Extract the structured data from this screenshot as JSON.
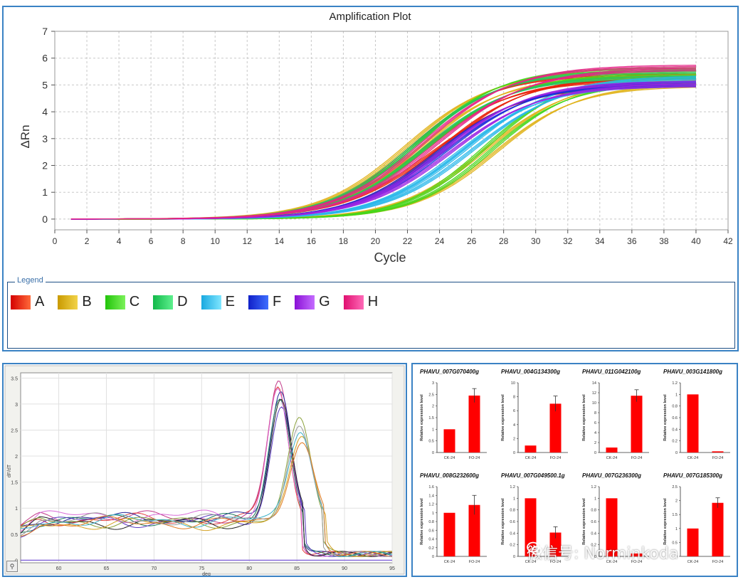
{
  "amplification": {
    "title": "Amplification Plot",
    "xlabel": "Cycle",
    "ylabel": "ΔRn",
    "legend_title": "Legend",
    "legend": [
      {
        "label": "A",
        "color_from": "#d40000",
        "color_to": "#ff6a3a"
      },
      {
        "label": "B",
        "color_from": "#c99a00",
        "color_to": "#f2d34a"
      },
      {
        "label": "C",
        "color_from": "#22c40a",
        "color_to": "#7cf25a"
      },
      {
        "label": "D",
        "color_from": "#12b84a",
        "color_to": "#5ef08e"
      },
      {
        "label": "E",
        "color_from": "#18a8e0",
        "color_to": "#7fe6ff"
      },
      {
        "label": "F",
        "color_from": "#1020c8",
        "color_to": "#3e6eff"
      },
      {
        "label": "G",
        "color_from": "#8a10d6",
        "color_to": "#c46cff"
      },
      {
        "label": "H",
        "color_from": "#e01070",
        "color_to": "#ff6ab8"
      }
    ]
  },
  "melt": {
    "xlabel": "deg",
    "ylabel": "dF/dT",
    "corner_icon": "zoom-icon"
  },
  "watermark": {
    "text": "微信号: Norminkoda",
    "icon": "wechat-icon"
  },
  "chart_data": [
    {
      "type": "line",
      "title": "Amplification Plot",
      "xlabel": "Cycle",
      "ylabel": "ΔRn",
      "xlim": [
        0,
        42
      ],
      "ylim": [
        -0.4,
        7
      ],
      "xticks": [
        0,
        2,
        4,
        6,
        8,
        10,
        12,
        14,
        16,
        18,
        20,
        22,
        24,
        26,
        28,
        30,
        32,
        34,
        36,
        38,
        40,
        42
      ],
      "yticks": [
        0,
        1,
        2,
        3,
        4,
        5,
        6,
        7
      ],
      "grid": true,
      "legend": "bottom",
      "x_range": [
        1,
        40
      ],
      "curve_model": "sigmoid: y = plateau / (1 + exp(-(x - midpoint) / slope))",
      "series": [
        {
          "name": "A",
          "color": "#e8230a",
          "curves": [
            {
              "midpoint": 22.3,
              "slope": 2.6,
              "plateau": 5.4
            },
            {
              "midpoint": 23.0,
              "slope": 2.8,
              "plateau": 5.2
            },
            {
              "midpoint": 23.6,
              "slope": 2.9,
              "plateau": 5.0
            },
            {
              "midpoint": 24.1,
              "slope": 2.7,
              "plateau": 5.3
            }
          ]
        },
        {
          "name": "B",
          "color": "#e0b21a",
          "curves": [
            {
              "midpoint": 22.0,
              "slope": 2.7,
              "plateau": 5.5
            },
            {
              "midpoint": 22.8,
              "slope": 2.6,
              "plateau": 5.3
            },
            {
              "midpoint": 26.9,
              "slope": 2.7,
              "plateau": 5.2
            },
            {
              "midpoint": 27.5,
              "slope": 2.6,
              "plateau": 5.0
            }
          ]
        },
        {
          "name": "C",
          "color": "#46d61a",
          "curves": [
            {
              "midpoint": 22.6,
              "slope": 2.6,
              "plateau": 5.6
            },
            {
              "midpoint": 23.3,
              "slope": 2.8,
              "plateau": 5.4
            },
            {
              "midpoint": 26.8,
              "slope": 2.5,
              "plateau": 5.3
            },
            {
              "midpoint": 27.2,
              "slope": 2.5,
              "plateau": 5.1
            }
          ]
        },
        {
          "name": "D",
          "color": "#22c75c",
          "curves": [
            {
              "midpoint": 22.4,
              "slope": 2.7,
              "plateau": 5.5
            },
            {
              "midpoint": 23.1,
              "slope": 2.7,
              "plateau": 5.3
            }
          ]
        },
        {
          "name": "E",
          "color": "#2ab8ea",
          "curves": [
            {
              "midpoint": 25.2,
              "slope": 2.7,
              "plateau": 5.0
            },
            {
              "midpoint": 25.7,
              "slope": 2.8,
              "plateau": 5.3
            },
            {
              "midpoint": 26.1,
              "slope": 2.8,
              "plateau": 5.2
            }
          ]
        },
        {
          "name": "F",
          "color": "#1a2ed8",
          "curves": [
            {
              "midpoint": 23.9,
              "slope": 2.7,
              "plateau": 5.0
            },
            {
              "midpoint": 24.4,
              "slope": 2.8,
              "plateau": 5.1
            }
          ]
        },
        {
          "name": "G",
          "color": "#9a22e2",
          "curves": [
            {
              "midpoint": 24.2,
              "slope": 2.7,
              "plateau": 5.1
            },
            {
              "midpoint": 24.7,
              "slope": 2.8,
              "plateau": 5.0
            }
          ]
        },
        {
          "name": "H",
          "color": "#e62486",
          "curves": [
            {
              "midpoint": 23.0,
              "slope": 2.8,
              "plateau": 5.7
            },
            {
              "midpoint": 23.8,
              "slope": 2.9,
              "plateau": 5.6
            }
          ]
        }
      ]
    },
    {
      "type": "line",
      "xlabel": "deg",
      "ylabel": "dF/dT",
      "xlim": [
        56,
        95
      ],
      "ylim": [
        -0.05,
        3.6
      ],
      "xticks": [
        60,
        65,
        70,
        75,
        80,
        85,
        90,
        95
      ],
      "yticks": [
        0,
        0.5,
        1,
        1.5,
        2,
        2.5,
        3,
        3.5
      ],
      "grid": true,
      "curve_model": "baseline 0.7-0.9 plus gaussian peak: height * exp(-((x - peak_x) / width)^2)",
      "series": [
        {
          "name": "",
          "color": "#c23a8a",
          "peak_x": 83.1,
          "height": 2.6,
          "width": 1.55,
          "base": 0.82
        },
        {
          "name": "",
          "color": "#e23b3b",
          "peak_x": 83.0,
          "height": 2.55,
          "width": 1.5,
          "base": 0.78
        },
        {
          "name": "",
          "color": "#2a2a9a",
          "peak_x": 83.3,
          "height": 2.45,
          "width": 1.55,
          "base": 0.8
        },
        {
          "name": "",
          "color": "#1a7a5a",
          "peak_x": 83.2,
          "height": 2.35,
          "width": 1.6,
          "base": 0.77
        },
        {
          "name": "",
          "color": "#5a3ac2",
          "peak_x": 83.4,
          "height": 2.25,
          "width": 1.6,
          "base": 0.75
        },
        {
          "name": "",
          "color": "#d86ad8",
          "peak_x": 83.0,
          "height": 2.5,
          "width": 1.5,
          "base": 0.85
        },
        {
          "name": "",
          "color": "#222222",
          "peak_x": 83.3,
          "height": 2.38,
          "width": 1.55,
          "base": 0.72
        },
        {
          "name": "",
          "color": "#8aa03a",
          "peak_x": 85.3,
          "height": 1.9,
          "width": 1.7,
          "base": 0.74
        },
        {
          "name": "",
          "color": "#d4a020",
          "peak_x": 85.6,
          "height": 1.7,
          "width": 1.75,
          "base": 0.7
        },
        {
          "name": "",
          "color": "#3ab0c8",
          "peak_x": 85.4,
          "height": 1.8,
          "width": 1.7,
          "base": 0.76
        },
        {
          "name": "",
          "color": "#e07a20",
          "peak_x": 85.5,
          "height": 1.65,
          "width": 1.8,
          "base": 0.72
        },
        {
          "name": "",
          "color": "#9a9a9a",
          "peak_x": 85.2,
          "height": 1.85,
          "width": 1.7,
          "base": 0.78
        }
      ]
    },
    {
      "type": "bar",
      "title": "PHAVU_007G070400g",
      "ylabel": "Relative expression level",
      "categories": [
        "CK-24",
        "FO-24"
      ],
      "values": [
        1.0,
        2.45
      ],
      "errors": [
        0,
        0.3
      ],
      "ylim": [
        0,
        3
      ],
      "yticks": [
        0,
        0.5,
        1,
        1.5,
        2,
        2.5,
        3
      ],
      "color": "#ff0000"
    },
    {
      "type": "bar",
      "title": "PHAVU_004G134300g",
      "ylabel": "Relative expression level",
      "categories": [
        "CK-24",
        "FO-24"
      ],
      "values": [
        1.0,
        7.0
      ],
      "errors": [
        0,
        1.1
      ],
      "ylim": [
        0,
        10
      ],
      "yticks": [
        0,
        2,
        4,
        6,
        8,
        10
      ],
      "color": "#ff0000"
    },
    {
      "type": "bar",
      "title": "PHAVU_011G042100g",
      "ylabel": "Relative expression level",
      "categories": [
        "CK-24",
        "FO-24"
      ],
      "values": [
        1.0,
        11.4
      ],
      "errors": [
        0,
        1.2
      ],
      "ylim": [
        0,
        14
      ],
      "yticks": [
        0,
        2,
        4,
        6,
        8,
        10,
        12,
        14
      ],
      "color": "#ff0000"
    },
    {
      "type": "bar",
      "title": "PHAVU_003G141800g",
      "ylabel": "Relative expression level",
      "categories": [
        "CK-24",
        "FO-24"
      ],
      "values": [
        1.0,
        0.02
      ],
      "errors": [
        0,
        0
      ],
      "ylim": [
        0,
        1.2
      ],
      "yticks": [
        0,
        0.2,
        0.4,
        0.6,
        0.8,
        1,
        1.2
      ],
      "color": "#ff0000"
    },
    {
      "type": "bar",
      "title": "PHAVU_008G232600g",
      "ylabel": "Relative expression level",
      "categories": [
        "CK-24",
        "FO-24"
      ],
      "values": [
        1.0,
        1.18
      ],
      "errors": [
        0,
        0.22
      ],
      "ylim": [
        0,
        1.6
      ],
      "yticks": [
        0,
        0.2,
        0.4,
        0.6,
        0.8,
        1,
        1.2,
        1.4,
        1.6
      ],
      "color": "#ff0000"
    },
    {
      "type": "bar",
      "title": "PHAVU_007G049500.1g",
      "ylabel": "Relative expression level",
      "categories": [
        "CK-24",
        "FO-24"
      ],
      "values": [
        1.0,
        0.41
      ],
      "errors": [
        0,
        0.1
      ],
      "ylim": [
        0,
        1.2
      ],
      "yticks": [
        0,
        0.2,
        0.4,
        0.6,
        0.8,
        1,
        1.2
      ],
      "color": "#ff0000"
    },
    {
      "type": "bar",
      "title": "PHAVU_007G236300g",
      "ylabel": "Relative expression level",
      "categories": [
        "CK-24",
        "FO-24"
      ],
      "values": [
        1.0,
        0.05
      ],
      "errors": [
        0,
        0
      ],
      "ylim": [
        0,
        1.2
      ],
      "yticks": [
        0,
        0.2,
        0.4,
        0.6,
        0.8,
        1,
        1.2
      ],
      "color": "#ff0000"
    },
    {
      "type": "bar",
      "title": "PHAVU_007G185300g",
      "ylabel": "Relative expression level",
      "categories": [
        "CK-24",
        "FO-24"
      ],
      "values": [
        1.0,
        1.92
      ],
      "errors": [
        0,
        0.18
      ],
      "ylim": [
        0,
        2.5
      ],
      "yticks": [
        0,
        0.5,
        1,
        1.5,
        2,
        2.5
      ],
      "color": "#ff0000"
    }
  ]
}
